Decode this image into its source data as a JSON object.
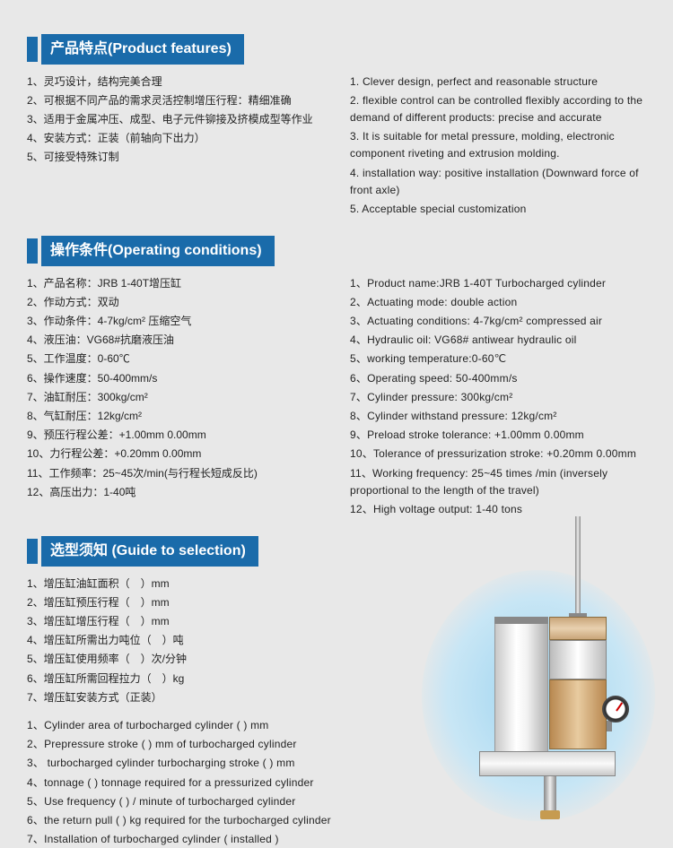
{
  "sections": {
    "features": {
      "title": "产品特点(Product features)",
      "cn": [
        "1、灵巧设计，结构完美合理",
        "2、可根据不同产品的需求灵活控制增压行程：精细准确",
        "3、适用于金属冲压、成型、电子元件铆接及挤模成型等作业",
        "4、安装方式：正装（前轴向下出力）",
        "5、可接受特殊订制"
      ],
      "en": [
        "1. Clever design, perfect and reasonable structure",
        "2. flexible control can be controlled flexibly according to the demand of different products: precise and accurate",
        "3. It is suitable for metal pressure, molding, electronic component riveting and extrusion molding.",
        "4. installation way: positive installation (Downward force of front axle)",
        "5. Acceptable special customization"
      ]
    },
    "operating": {
      "title": "操作条件(Operating conditions)",
      "cn": [
        "1、产品名称：JRB 1-40T增压缸",
        "2、作动方式：双动",
        "3、作动条件：4-7kg/cm² 压缩空气",
        "4、液压油：VG68#抗磨液压油",
        "5、工作温度：0-60℃",
        "6、操作速度：50-400mm/s",
        "7、油缸耐压：300kg/cm²",
        "8、气缸耐压：12kg/cm²",
        "9、预压行程公差：+1.00mm 0.00mm",
        "10、力行程公差：+0.20mm 0.00mm",
        "11、工作频率：25~45次/min(与行程长短成反比)",
        "12、高压出力：1-40吨"
      ],
      "en": [
        "1、Product name:JRB 1-40T  Turbocharged cylinder",
        "2、Actuating mode: double action",
        "3、Actuating conditions: 4-7kg/cm² compressed air",
        "4、Hydraulic oil: VG68# antiwear hydraulic oil",
        "5、working temperature:0-60℃",
        "6、Operating speed: 50-400mm/s",
        "7、Cylinder pressure: 300kg/cm²",
        "8、Cylinder withstand pressure: 12kg/cm²",
        "9、Preload stroke tolerance: +1.00mm 0.00mm",
        "10、Tolerance of pressurization stroke: +0.20mm 0.00mm",
        "11、Working frequency: 25~45 times /min (inversely proportional to the length of the travel)",
        "12、High voltage output: 1-40 tons"
      ]
    },
    "guide": {
      "title": "选型须知 (Guide to selection)",
      "cn": [
        "1、增压缸油缸面积（　）mm",
        "2、增压缸预压行程（　）mm",
        "3、增压缸增压行程（　）mm",
        "4、增压缸所需出力吨位（　）吨",
        "5、增压缸使用频率（　）次/分钟",
        "6、增压缸所需回程拉力（　）kg",
        "7、增压缸安装方式（正装）"
      ],
      "en": [
        "1、Cylinder area of turbocharged cylinder (  ) mm",
        "2、Prepressure stroke (  ) mm of turbocharged cylinder",
        "3、 turbocharged cylinder turbocharging stroke (  ) mm",
        "4、tonnage (  ) tonnage required for a pressurized cylinder",
        "5、Use frequency (  ) / minute of turbocharged cylinder",
        "6、the return pull (  ) kg required for the turbocharged cylinder",
        "7、Installation of turbocharged cylinder ( installed )"
      ]
    }
  },
  "colors": {
    "header_bg": "#1a6baa",
    "page_bg": "#e8e8e8",
    "oval_bg": "#9dd4f0",
    "bronze": "#c9a67a",
    "steel": "#d0d0d0"
  }
}
